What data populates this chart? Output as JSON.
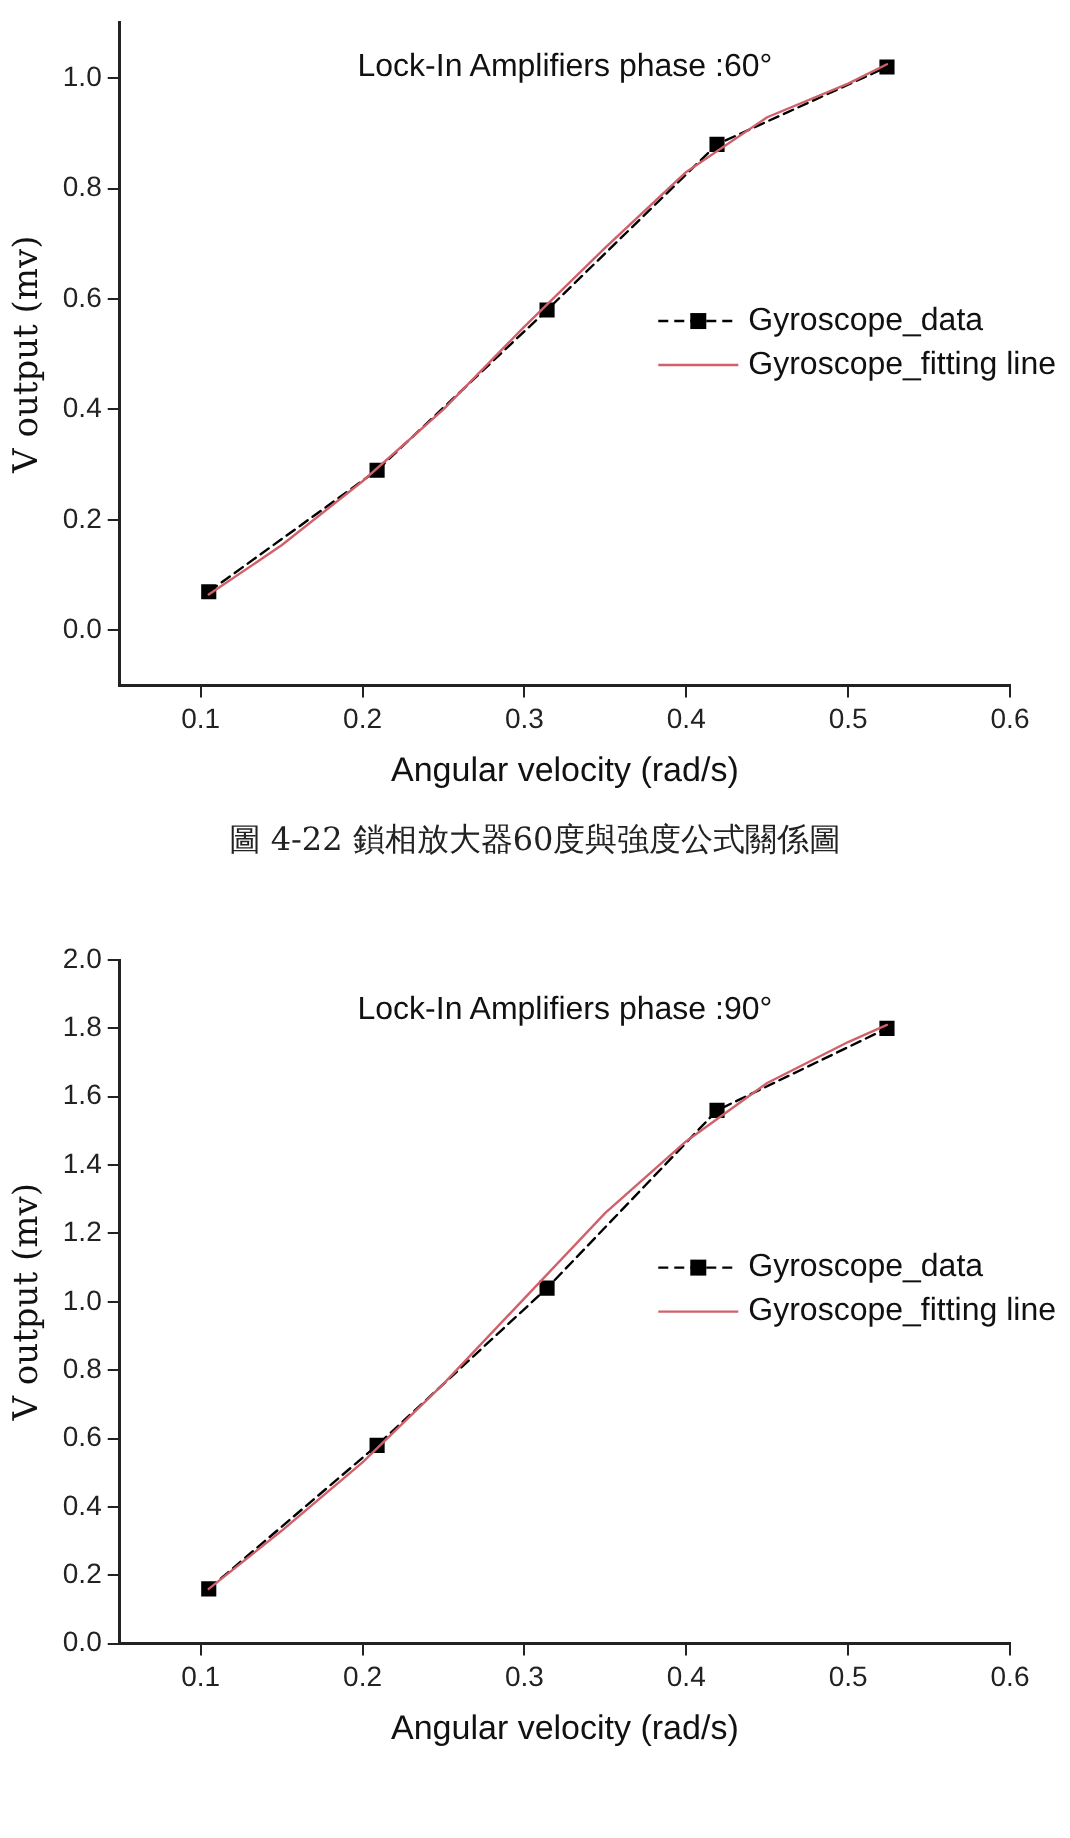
{
  "chart_data": [
    {
      "type": "line",
      "title": "Lock-In Amplifiers phase :60°",
      "xlabel": "Angular velocity (rad/s)",
      "ylabel": "V output (mv)",
      "xlim": [
        0.05,
        0.6
      ],
      "xticks": [
        0.1,
        0.2,
        0.3,
        0.4,
        0.5,
        0.6
      ],
      "ylim": [
        -0.1,
        1.1
      ],
      "yticks": [
        {
          "value": 0,
          "label": "0.0"
        },
        0.2,
        0.4,
        0.6,
        0.8,
        {
          "value": 1,
          "label": "1.0"
        }
      ],
      "grid": false,
      "legend": "right",
      "series": [
        {
          "name": "Gyroscope_data",
          "color": "#000000",
          "marker": "square",
          "line_style": "dashed",
          "x": [
            0.105,
            0.209,
            0.314,
            0.419,
            0.524
          ],
          "values": [
            0.07,
            0.29,
            0.58,
            0.88,
            1.02
          ]
        },
        {
          "name": "Gyroscope_fitting line",
          "color": "#d0606a",
          "marker": "none",
          "line_style": "solid",
          "x": [
            0.105,
            0.15,
            0.2,
            0.25,
            0.3,
            0.35,
            0.4,
            0.45,
            0.5,
            0.524
          ],
          "values": [
            0.065,
            0.154,
            0.27,
            0.4,
            0.55,
            0.693,
            0.83,
            0.929,
            0.99,
            1.025
          ]
        }
      ],
      "annotations": [
        "圖 4-22 鎖相放大器60度與強度公式關係圖"
      ]
    },
    {
      "type": "line",
      "title": "Lock-In Amplifiers phase :90°",
      "xlabel": "Angular velocity (rad/s)",
      "ylabel": "V output (mv)",
      "xlim": [
        0.05,
        0.6
      ],
      "xticks": [
        0.1,
        0.2,
        0.3,
        0.4,
        0.5,
        0.6
      ],
      "ylim": [
        0,
        2
      ],
      "yticks": [
        {
          "value": 0,
          "label": "0.0"
        },
        0.2,
        0.4,
        0.6,
        0.8,
        {
          "value": 1,
          "label": "1.0"
        },
        1.2,
        1.4,
        1.6,
        1.8,
        {
          "value": 2,
          "label": "2.0"
        }
      ],
      "grid": false,
      "legend": "right",
      "series": [
        {
          "name": "Gyroscope_data",
          "color": "#000000",
          "marker": "square",
          "line_style": "dashed",
          "x": [
            0.105,
            0.209,
            0.314,
            0.419,
            0.524
          ],
          "values": [
            0.16,
            0.58,
            1.04,
            1.56,
            1.8
          ]
        },
        {
          "name": "Gyroscope_fitting line",
          "color": "#d0606a",
          "marker": "none",
          "line_style": "solid",
          "x": [
            0.105,
            0.15,
            0.2,
            0.25,
            0.3,
            0.35,
            0.4,
            0.45,
            0.5,
            0.524
          ],
          "values": [
            0.16,
            0.33,
            0.53,
            0.76,
            1.01,
            1.26,
            1.47,
            1.64,
            1.76,
            1.81
          ]
        }
      ]
    }
  ]
}
